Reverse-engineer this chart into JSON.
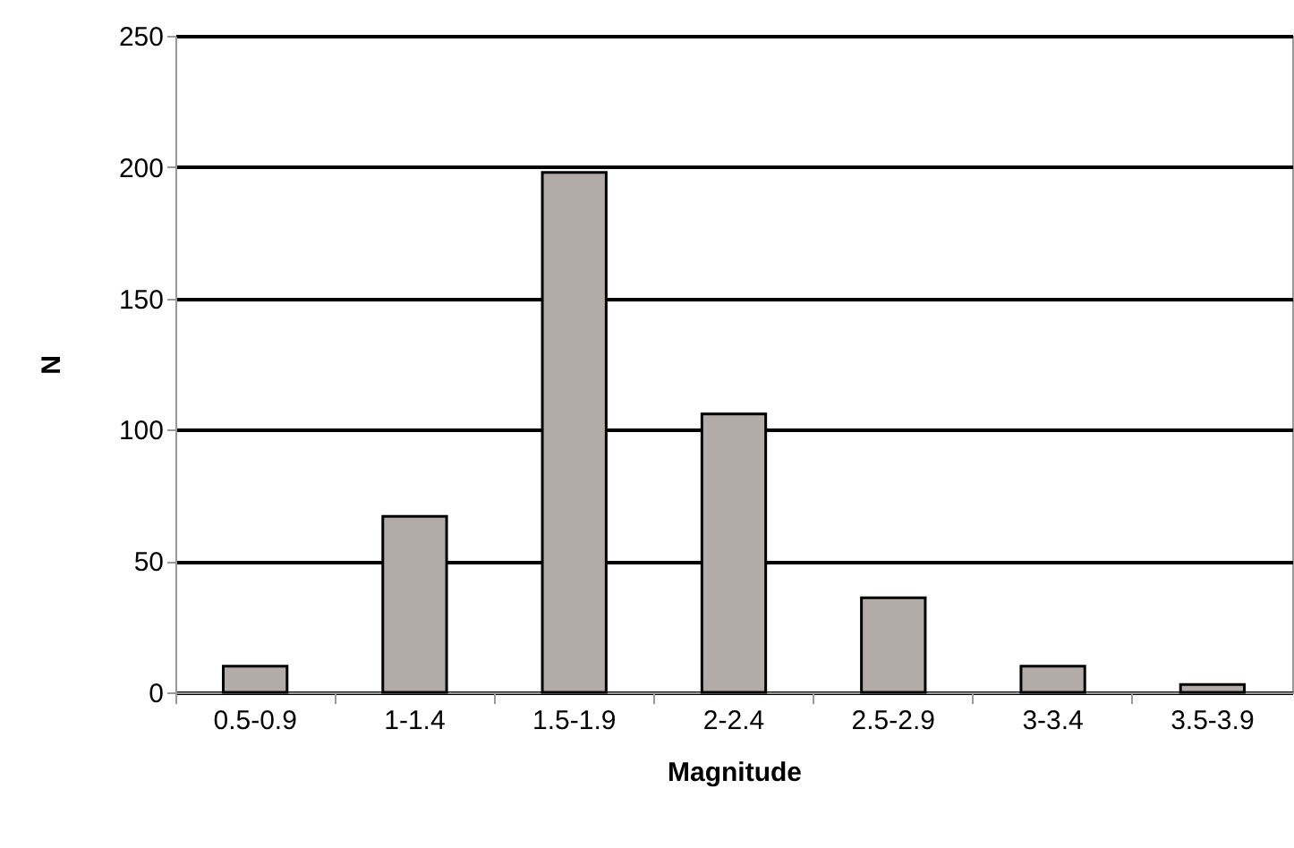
{
  "chart_data": {
    "type": "bar",
    "xlabel": "Magnitude",
    "ylabel": "N",
    "categories": [
      "0.5-0.9",
      "1-1.4",
      "1.5-1.9",
      "2-2.4",
      "2.5-2.9",
      "3-3.4",
      "3.5-3.9"
    ],
    "values": [
      10,
      67,
      198,
      106,
      36,
      10,
      3
    ],
    "color": "#b3aba7",
    "ylim": [
      0,
      250
    ],
    "yticks": [
      0,
      50,
      100,
      150,
      200,
      250
    ],
    "grid": "y"
  }
}
